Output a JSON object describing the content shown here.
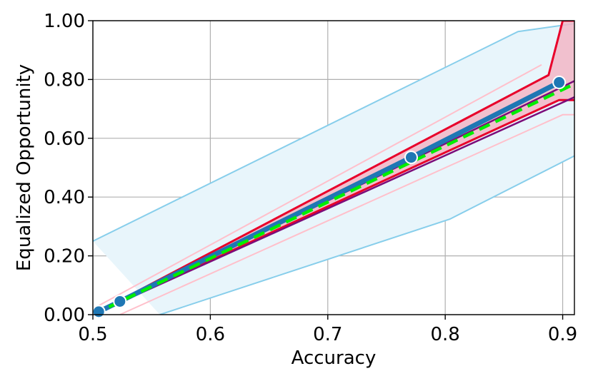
{
  "chart_data": {
    "type": "line",
    "xlabel": "Accuracy",
    "ylabel": "Equalized Opportunity",
    "xlim": [
      0.5,
      0.91
    ],
    "ylim": [
      0.0,
      1.0
    ],
    "x_ticks": [
      "0.5",
      "0.6",
      "0.7",
      "0.8",
      "0.9"
    ],
    "x_tick_values": [
      0.5,
      0.6,
      0.7,
      0.8,
      0.9
    ],
    "y_ticks": [
      "0.00",
      "0.20",
      "0.40",
      "0.60",
      "0.80",
      "1.00"
    ],
    "y_tick_values": [
      0.0,
      0.2,
      0.4,
      0.6,
      0.8,
      1.0
    ],
    "grid": true,
    "legend": "none",
    "colors": {
      "light_band_fill": "#e8f5fb",
      "light_band_edge": "#87ceeb",
      "red_band_fill": "#f2b6c6",
      "red_band_edge": "#e8002a",
      "purple_edge": "#7b0d7a",
      "pink_edge": "#ffc0cb",
      "main_line": "#1f77b4",
      "dashed_line": "#00ee00",
      "grid": "#b0b0b0"
    },
    "series": [
      {
        "role": "main-line",
        "x": [
          0.505,
          0.523,
          0.771,
          0.897
        ],
        "y": [
          0.01,
          0.045,
          0.535,
          0.79
        ]
      },
      {
        "role": "dashed-line",
        "x": [
          0.5,
          0.91
        ],
        "y": [
          0.0,
          0.785
        ]
      }
    ],
    "bands": [
      {
        "role": "wide-light-band",
        "upper": {
          "x": [
            0.5,
            0.862,
            0.91
          ],
          "y": [
            0.25,
            0.963,
            0.99
          ]
        },
        "lower": {
          "x": [
            0.557,
            0.804,
            0.91
          ],
          "y": [
            0.0,
            0.325,
            0.54
          ]
        }
      },
      {
        "role": "red-band",
        "upper": {
          "x": [
            0.5,
            0.888,
            0.9,
            0.91
          ],
          "y": [
            0.0,
            0.815,
            1.0,
            1.0
          ]
        },
        "lower": {
          "x": [
            0.5,
            0.897,
            0.91
          ],
          "y": [
            0.0,
            0.73,
            0.73
          ]
        }
      },
      {
        "role": "purple-band",
        "upper": {
          "x": [
            0.5,
            0.91
          ],
          "y": [
            0.0,
            0.795
          ]
        },
        "lower": {
          "x": [
            0.5,
            0.91
          ],
          "y": [
            0.0,
            0.74
          ]
        }
      },
      {
        "role": "pink-band",
        "upper": {
          "x": [
            0.5,
            0.882
          ],
          "y": [
            0.02,
            0.85
          ]
        },
        "lower": {
          "x": [
            0.523,
            0.9,
            0.91
          ],
          "y": [
            0.0,
            0.68,
            0.68
          ]
        }
      }
    ]
  }
}
